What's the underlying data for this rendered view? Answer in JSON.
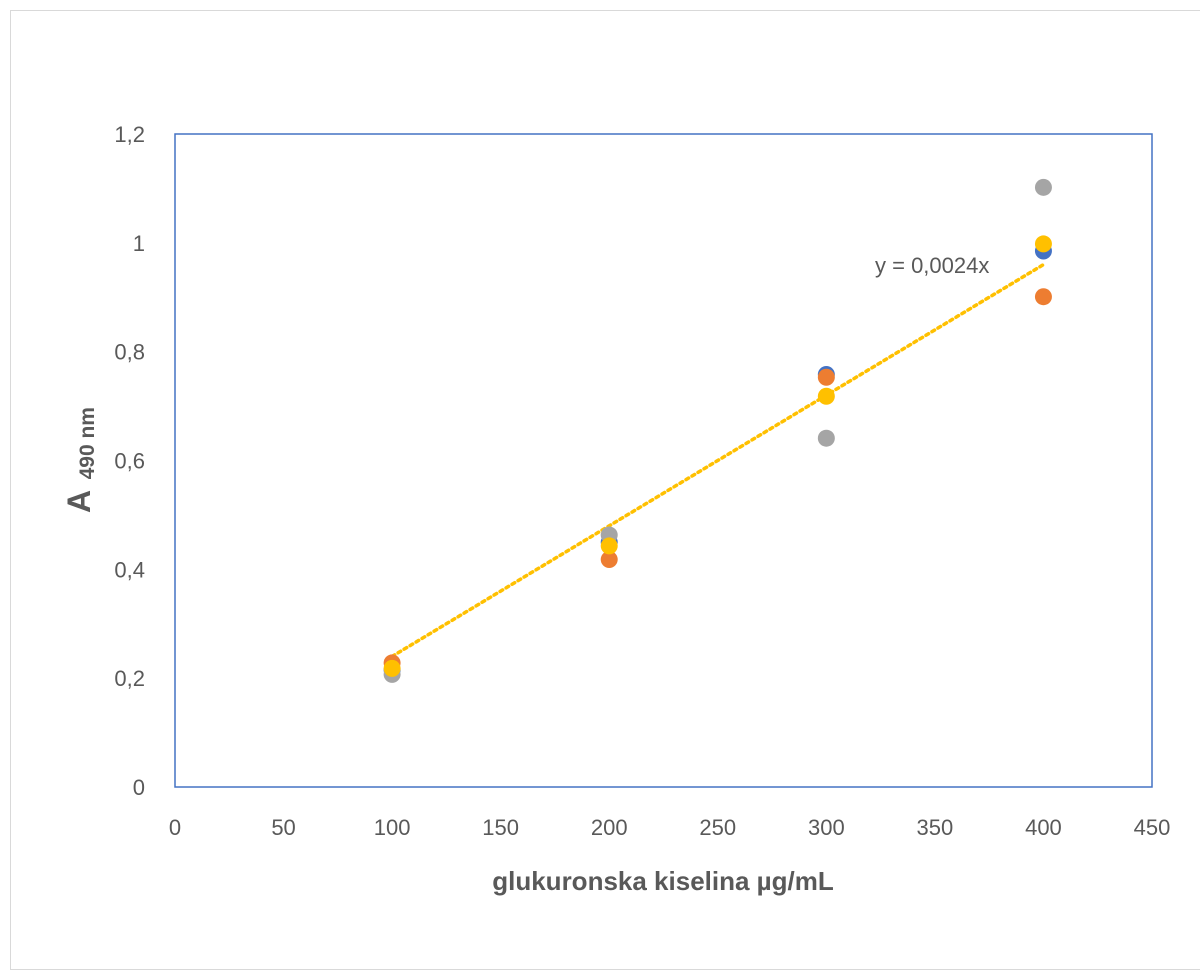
{
  "chart_data": {
    "type": "scatter",
    "title": "",
    "xlabel": "glukuronska kiselina µg/mL",
    "ylabel": {
      "main": "A",
      "subscript": "490 nm"
    },
    "xlim": [
      0,
      450
    ],
    "ylim": [
      0,
      1.2
    ],
    "x_ticks": [
      "0",
      "50",
      "100",
      "150",
      "200",
      "250",
      "300",
      "350",
      "400",
      "450"
    ],
    "x_tick_values": [
      0,
      50,
      100,
      150,
      200,
      250,
      300,
      350,
      400,
      450
    ],
    "y_ticks": [
      "0",
      "0,2",
      "0,4",
      "0,6",
      "0,8",
      "1",
      "1,2"
    ],
    "y_tick_values": [
      0,
      0.2,
      0.4,
      0.6,
      0.8,
      1.0,
      1.2
    ],
    "grid": false,
    "legend": "none",
    "series": [
      {
        "color": "#4472C4",
        "x": [
          100,
          200,
          300,
          400
        ],
        "y": [
          0.215,
          0.45,
          0.758,
          0.985
        ]
      },
      {
        "color": "#A5A5A5",
        "x": [
          100,
          200,
          300,
          400
        ],
        "y": [
          0.207,
          0.463,
          0.641,
          1.102
        ]
      },
      {
        "color": "#ED7D31",
        "x": [
          100,
          200,
          300,
          400
        ],
        "y": [
          0.228,
          0.418,
          0.753,
          0.901
        ]
      },
      {
        "color": "#FFC000",
        "x": [
          100,
          200,
          300,
          400
        ],
        "y": [
          0.218,
          0.443,
          0.718,
          0.998
        ]
      }
    ],
    "trendline": {
      "color": "#FFC000",
      "style": "dotted",
      "slope": 0.0024,
      "x_range": [
        100,
        400
      ],
      "equation_label": "y = 0,0024x"
    },
    "plot_border_color": "#4472C4"
  }
}
